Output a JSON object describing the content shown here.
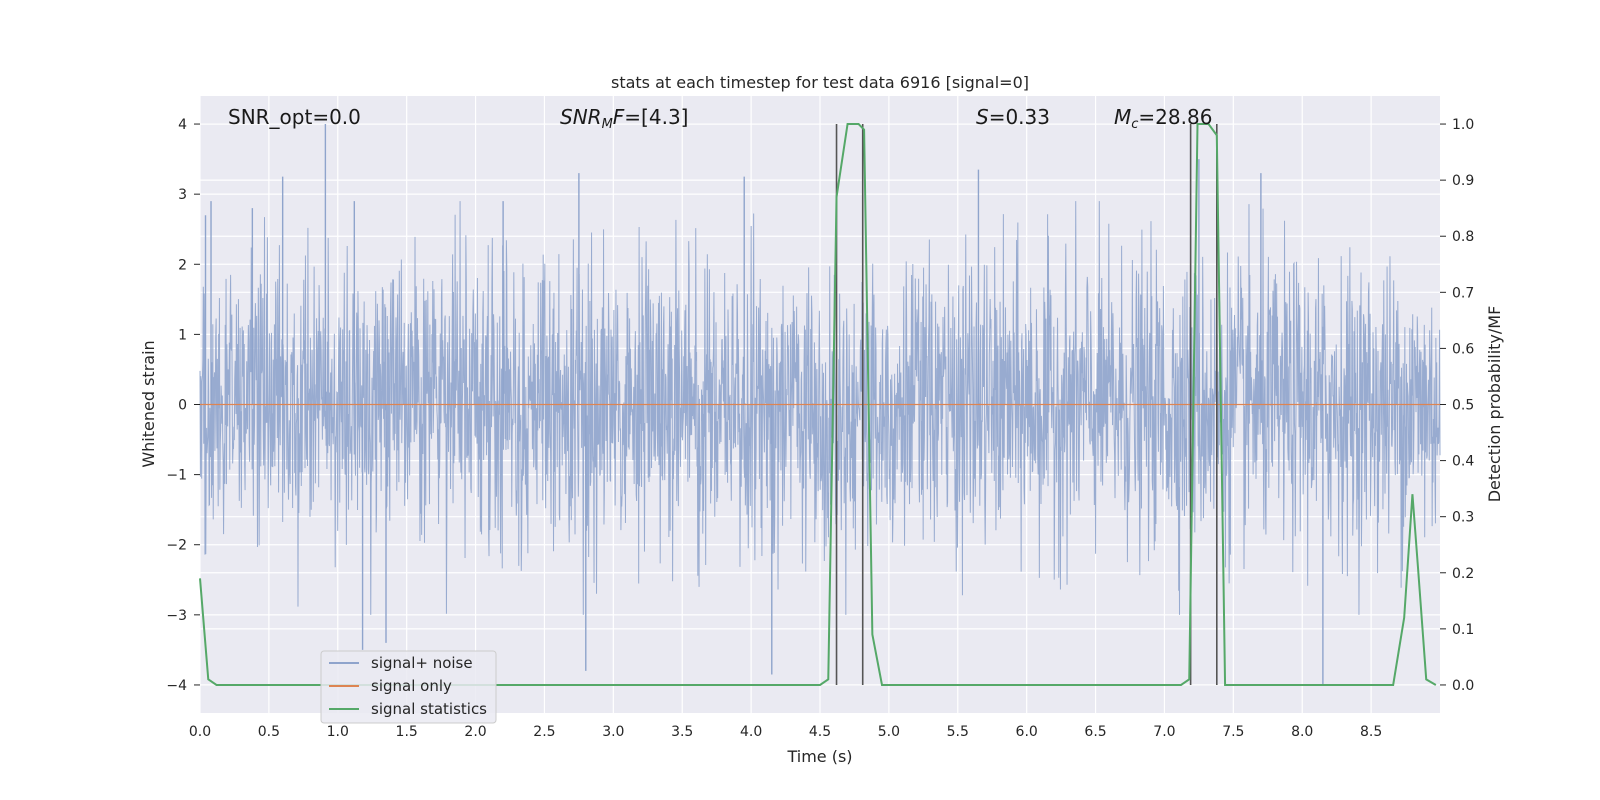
{
  "chart_data": {
    "type": "line",
    "title": "stats at each timestep for test data 6916 [signal=0]",
    "xlabel": "Time (s)",
    "ylabel": "Whitened strain",
    "y2label": "Detection probability/MF",
    "xlim": [
      0.0,
      9.0
    ],
    "ylim": [
      -4.4,
      4.4
    ],
    "y2lim": [
      -0.05,
      1.05
    ],
    "xticks": [
      "0.0",
      "0.5",
      "1.0",
      "1.5",
      "2.0",
      "2.5",
      "3.0",
      "3.5",
      "4.0",
      "4.5",
      "5.0",
      "5.5",
      "6.0",
      "6.5",
      "7.0",
      "7.5",
      "8.0",
      "8.5"
    ],
    "yticks": [
      "4",
      "3",
      "2",
      "1",
      "0",
      "−1",
      "−2",
      "−3",
      "−4"
    ],
    "y2ticks": [
      "1.0",
      "0.9",
      "0.8",
      "0.7",
      "0.6",
      "0.5",
      "0.4",
      "0.3",
      "0.2",
      "0.1",
      "0.0"
    ],
    "grid": true,
    "legend_position": "lower-left",
    "annotations": [
      {
        "label": "SNR_opt=0.0",
        "html": "SNR_opt=0.0"
      },
      {
        "label": "SNR_MF=[4.3]",
        "html": "<tspan font-style='italic'>SNR</tspan><tspan font-style='italic' font-size='13' dy='4'>M</tspan><tspan font-style='italic' dy='-4'>F</tspan>=[4.3]"
      },
      {
        "label": "S=0.33",
        "html": "<tspan font-style='italic'>S</tspan>=0.33"
      },
      {
        "label": "M_c=28.86",
        "html": "<tspan font-style='italic'>M</tspan><tspan font-style='italic' font-size='13' dy='4'>c</tspan><tspan dy='-4'>=28.86</tspan>"
      }
    ],
    "series": [
      {
        "name": "signal+ noise",
        "color": "#8fa4cc",
        "description": "dense whitened noise trace",
        "sample_rate_hz": 2048,
        "peaks": [
          {
            "x": 0.04,
            "y": 2.7
          },
          {
            "x": 0.08,
            "y": 2.9
          },
          {
            "x": 0.38,
            "y": 2.8
          },
          {
            "x": 0.6,
            "y": 3.25
          },
          {
            "x": 0.91,
            "y": 4.0
          },
          {
            "x": 1.12,
            "y": 2.9
          },
          {
            "x": 2.2,
            "y": 2.9
          },
          {
            "x": 2.75,
            "y": 3.3
          },
          {
            "x": 3.95,
            "y": 3.25
          },
          {
            "x": 5.65,
            "y": 3.35
          },
          {
            "x": 7.25,
            "y": 3.5
          },
          {
            "x": 7.7,
            "y": 3.3
          },
          {
            "x": 1.18,
            "y": -3.5
          },
          {
            "x": 1.35,
            "y": -3.4
          },
          {
            "x": 2.8,
            "y": -3.8
          },
          {
            "x": 4.15,
            "y": -3.85
          },
          {
            "x": 8.15,
            "y": -4.0
          }
        ]
      },
      {
        "name": "signal only",
        "color": "#dd8452",
        "x": [
          0.0,
          9.0
        ],
        "y": [
          0.0,
          0.0
        ]
      },
      {
        "name": "signal statistics",
        "color": "#55a868",
        "axis": "right",
        "x": [
          0.0,
          0.06,
          0.12,
          1.0,
          2.0,
          3.0,
          4.0,
          4.4,
          4.5,
          4.56,
          4.62,
          4.7,
          4.78,
          4.82,
          4.88,
          4.95,
          5.0,
          6.0,
          7.0,
          7.12,
          7.18,
          7.24,
          7.32,
          7.38,
          7.44,
          8.0,
          8.5,
          8.66,
          8.74,
          8.8,
          8.84,
          8.9,
          8.97
        ],
        "y": [
          0.19,
          0.01,
          0.0,
          0.0,
          0.0,
          0.0,
          0.0,
          0.0,
          0.0,
          0.01,
          0.87,
          1.0,
          1.0,
          0.99,
          0.09,
          0.0,
          0.0,
          0.0,
          0.0,
          0.0,
          0.01,
          1.0,
          1.0,
          0.98,
          0.0,
          0.0,
          0.0,
          0.0,
          0.12,
          0.34,
          0.21,
          0.01,
          0.0
        ]
      }
    ],
    "vlines": [
      4.62,
      4.81,
      7.19,
      7.38
    ]
  },
  "legend": {
    "items": [
      {
        "label": "signal+ noise",
        "color": "#8fa4cc"
      },
      {
        "label": "signal only",
        "color": "#dd8452"
      },
      {
        "label": "signal statistics",
        "color": "#55a868"
      }
    ]
  }
}
